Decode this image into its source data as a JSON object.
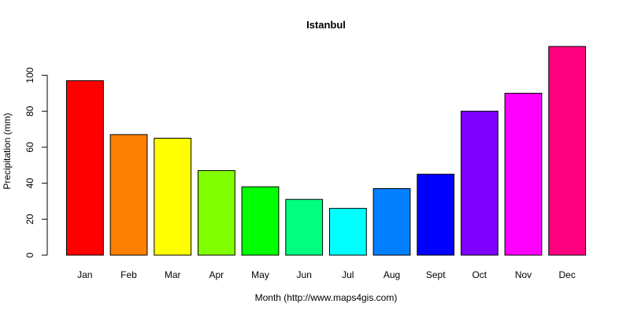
{
  "chart_data": {
    "type": "bar",
    "title": "Istanbul",
    "xlabel": "Month (http://www.maps4gis.com)",
    "ylabel": "Precipitation (mm)",
    "categories": [
      "Jan",
      "Feb",
      "Mar",
      "Apr",
      "May",
      "Jun",
      "Jul",
      "Aug",
      "Sept",
      "Oct",
      "Nov",
      "Dec"
    ],
    "values": [
      97,
      67,
      65,
      47,
      38,
      31,
      26,
      37,
      45,
      80,
      90,
      116
    ],
    "colors": [
      "#FF0000",
      "#FF8000",
      "#FFFF00",
      "#80FF00",
      "#00FF00",
      "#00FF80",
      "#00FFFF",
      "#0080FF",
      "#0000FF",
      "#8000FF",
      "#FF00FF",
      "#FF0080"
    ],
    "ylim": [
      0,
      116
    ],
    "yticks": [
      0,
      20,
      40,
      60,
      80,
      100
    ],
    "grid": false,
    "legend": "none"
  }
}
